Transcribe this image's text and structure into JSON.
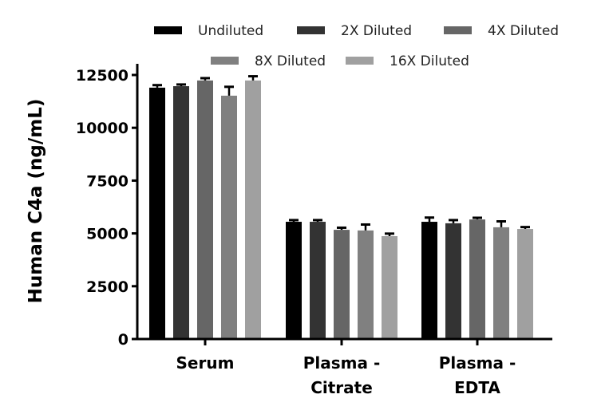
{
  "chart_data": {
    "type": "bar",
    "title": "",
    "xlabel": "",
    "ylabel": "Human C4a (ng/mL)",
    "ylim": [
      0,
      12500
    ],
    "yticks": [
      0,
      2500,
      5000,
      7500,
      10000,
      12500
    ],
    "grid": false,
    "legend_position": "top",
    "categories": [
      "Serum",
      "Plasma - Citrate",
      "Plasma - EDTA"
    ],
    "category_label_lines": [
      [
        "Serum"
      ],
      [
        "Plasma -",
        "Citrate"
      ],
      [
        "Plasma -",
        "EDTA"
      ]
    ],
    "series": [
      {
        "name": "Undiluted",
        "color": "#000000",
        "values": [
          11900,
          5550,
          5550
        ],
        "errors": [
          120,
          80,
          200
        ]
      },
      {
        "name": "2X Diluted",
        "color": "#333333",
        "values": [
          11970,
          5550,
          5480
        ],
        "errors": [
          80,
          80,
          150
        ]
      },
      {
        "name": "4X Diluted",
        "color": "#666666",
        "values": [
          12240,
          5170,
          5660
        ],
        "errors": [
          110,
          100,
          80
        ]
      },
      {
        "name": "8X Diluted",
        "color": "#808080",
        "values": [
          11520,
          5140,
          5290
        ],
        "errors": [
          420,
          280,
          280
        ]
      },
      {
        "name": "16X Diluted",
        "color": "#a0a0a0",
        "values": [
          12240,
          4870,
          5210
        ],
        "errors": [
          200,
          120,
          90
        ]
      }
    ]
  }
}
